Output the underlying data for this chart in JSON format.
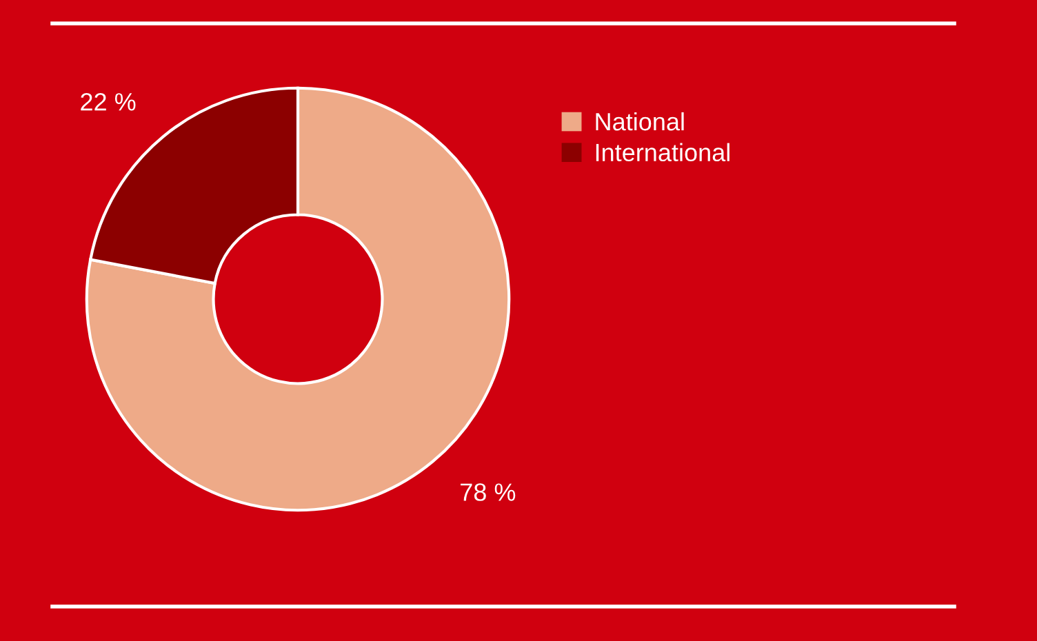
{
  "chart_data": {
    "type": "donut",
    "categories": [
      "National",
      "International"
    ],
    "values": [
      78,
      22
    ],
    "colors": [
      "#eeaa88",
      "#8c0000"
    ],
    "value_labels": [
      "78 %",
      "22 %"
    ],
    "legend": "top right"
  }
}
